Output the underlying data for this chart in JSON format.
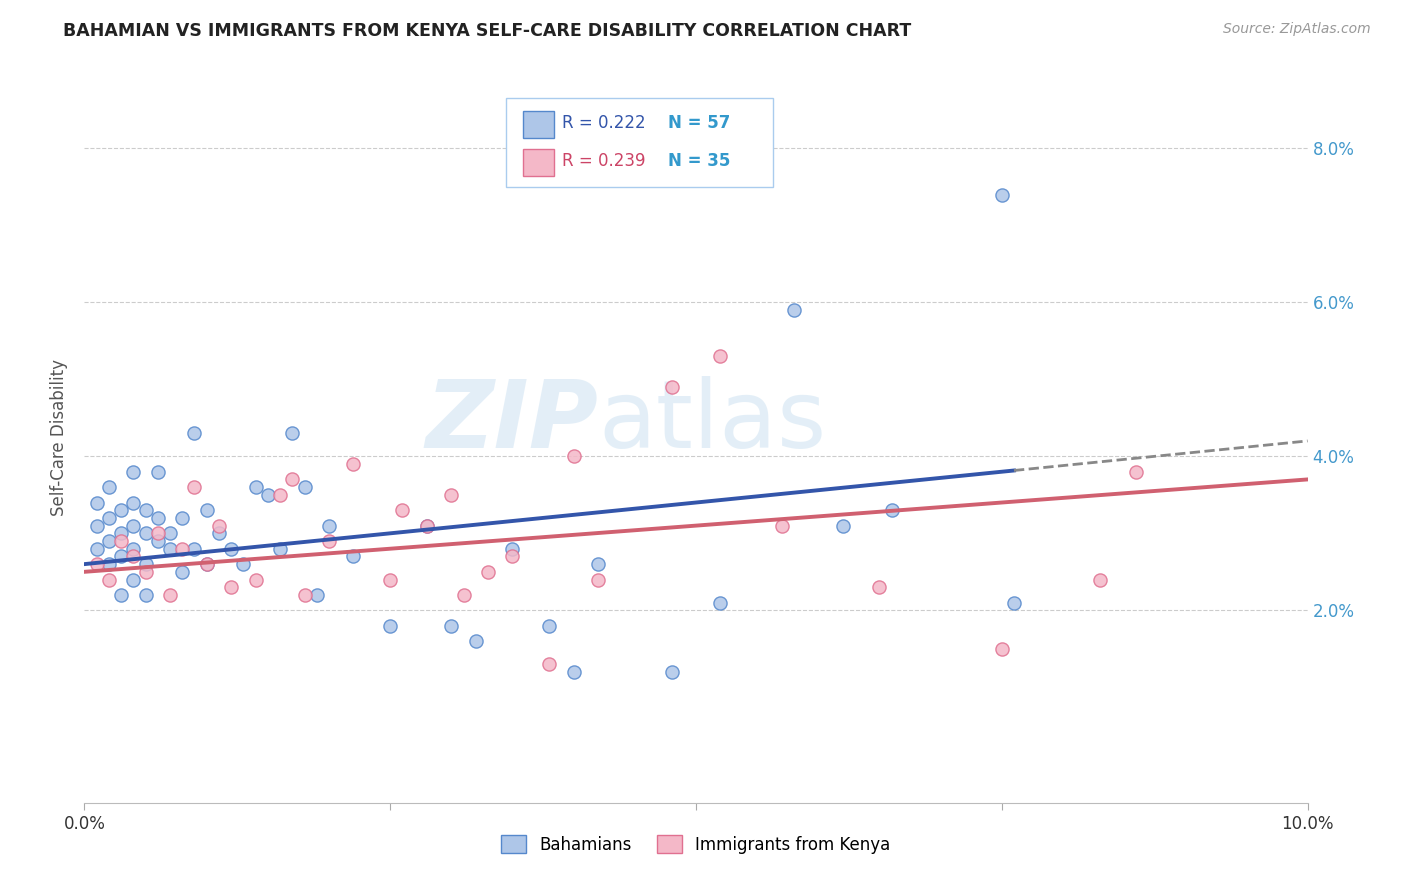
{
  "title": "BAHAMIAN VS IMMIGRANTS FROM KENYA SELF-CARE DISABILITY CORRELATION CHART",
  "source": "Source: ZipAtlas.com",
  "ylabel": "Self-Care Disability",
  "xlim": [
    0.0,
    0.1
  ],
  "ylim": [
    -0.005,
    0.09
  ],
  "yticks": [
    0.02,
    0.04,
    0.06,
    0.08
  ],
  "ytick_labels": [
    "2.0%",
    "4.0%",
    "6.0%",
    "8.0%"
  ],
  "group1_label": "Bahamians",
  "group2_label": "Immigrants from Kenya",
  "group1_color": "#aec6e8",
  "group2_color": "#f4b8c8",
  "group1_edge_color": "#5588cc",
  "group2_edge_color": "#e07090",
  "group1_line_color": "#3355aa",
  "group2_line_color": "#d06070",
  "background_color": "#ffffff",
  "grid_color": "#cccccc",
  "title_color": "#222222",
  "axis_label_color": "#555555",
  "ytick_color": "#4499cc",
  "watermark_zip": "ZIP",
  "watermark_atlas": "atlas",
  "bahamian_x": [
    0.001,
    0.001,
    0.001,
    0.002,
    0.002,
    0.002,
    0.002,
    0.003,
    0.003,
    0.003,
    0.003,
    0.004,
    0.004,
    0.004,
    0.004,
    0.004,
    0.005,
    0.005,
    0.005,
    0.005,
    0.006,
    0.006,
    0.006,
    0.007,
    0.007,
    0.008,
    0.008,
    0.009,
    0.009,
    0.01,
    0.01,
    0.011,
    0.012,
    0.013,
    0.014,
    0.015,
    0.016,
    0.017,
    0.018,
    0.019,
    0.02,
    0.022,
    0.025,
    0.028,
    0.03,
    0.032,
    0.035,
    0.038,
    0.04,
    0.042,
    0.048,
    0.052,
    0.058,
    0.062,
    0.066,
    0.075,
    0.076
  ],
  "bahamian_y": [
    0.028,
    0.031,
    0.034,
    0.026,
    0.029,
    0.032,
    0.036,
    0.027,
    0.03,
    0.033,
    0.022,
    0.028,
    0.031,
    0.034,
    0.024,
    0.038,
    0.026,
    0.03,
    0.033,
    0.022,
    0.029,
    0.032,
    0.038,
    0.028,
    0.03,
    0.025,
    0.032,
    0.028,
    0.043,
    0.026,
    0.033,
    0.03,
    0.028,
    0.026,
    0.036,
    0.035,
    0.028,
    0.043,
    0.036,
    0.022,
    0.031,
    0.027,
    0.018,
    0.031,
    0.018,
    0.016,
    0.028,
    0.018,
    0.012,
    0.026,
    0.012,
    0.021,
    0.059,
    0.031,
    0.033,
    0.074,
    0.021
  ],
  "kenya_x": [
    0.001,
    0.002,
    0.003,
    0.004,
    0.005,
    0.006,
    0.007,
    0.008,
    0.009,
    0.01,
    0.011,
    0.012,
    0.014,
    0.016,
    0.017,
    0.018,
    0.02,
    0.022,
    0.025,
    0.026,
    0.028,
    0.03,
    0.031,
    0.033,
    0.035,
    0.038,
    0.04,
    0.042,
    0.048,
    0.052,
    0.057,
    0.065,
    0.075,
    0.083,
    0.086
  ],
  "kenya_y": [
    0.026,
    0.024,
    0.029,
    0.027,
    0.025,
    0.03,
    0.022,
    0.028,
    0.036,
    0.026,
    0.031,
    0.023,
    0.024,
    0.035,
    0.037,
    0.022,
    0.029,
    0.039,
    0.024,
    0.033,
    0.031,
    0.035,
    0.022,
    0.025,
    0.027,
    0.013,
    0.04,
    0.024,
    0.049,
    0.053,
    0.031,
    0.023,
    0.015,
    0.024,
    0.038
  ],
  "trend_blue_x_start": 0.0,
  "trend_blue_x_solid_end": 0.076,
  "trend_blue_x_dash_end": 0.1,
  "trend_pink_x_start": 0.0,
  "trend_pink_x_end": 0.1
}
